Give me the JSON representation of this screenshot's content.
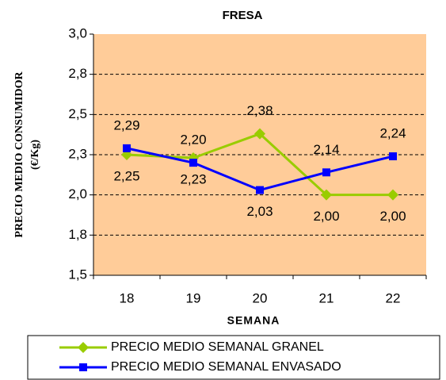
{
  "chart_data": {
    "type": "line",
    "title": "FRESA",
    "xlabel": "SEMANA",
    "ylabel": [
      "PRECIO MEDIO CONSUMIDOR",
      "(€/Kg)"
    ],
    "categories": [
      "18",
      "19",
      "20",
      "21",
      "22"
    ],
    "series": [
      {
        "name": "PRECIO MEDIO SEMANAL GRANEL",
        "color": "#99cc00",
        "marker": "diamond",
        "values": [
          2.25,
          2.23,
          2.38,
          2.0,
          2.0
        ],
        "value_labels": [
          "2,25",
          "2,23",
          "2,38",
          "2,00",
          "2,00"
        ]
      },
      {
        "name": "PRECIO MEDIO SEMANAL ENVASADO",
        "color": "#0000ff",
        "marker": "square",
        "values": [
          2.29,
          2.2,
          2.03,
          2.14,
          2.24
        ],
        "value_labels": [
          "2,29",
          "2,20",
          "2,03",
          "2,14",
          "2,24"
        ]
      }
    ],
    "ylim": [
      1.5,
      3.0
    ],
    "yticks": [
      {
        "value": 1.5,
        "label": "1,5"
      },
      {
        "value": 1.75,
        "label": "1,8"
      },
      {
        "value": 2.0,
        "label": "2,0"
      },
      {
        "value": 2.25,
        "label": "2,3"
      },
      {
        "value": 2.5,
        "label": "2,5"
      },
      {
        "value": 2.75,
        "label": "2,8"
      },
      {
        "value": 3.0,
        "label": "3,0"
      }
    ],
    "grid": true,
    "background": "#ffcc99"
  }
}
